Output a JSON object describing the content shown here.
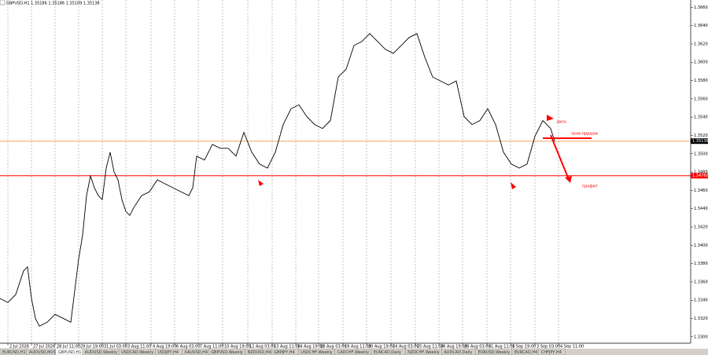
{
  "chart_data": {
    "type": "line",
    "title": "GBPUSD,H1 1.35186 1.35186 1.35109 1.35138",
    "x": [
      0,
      10,
      20,
      30,
      35,
      40,
      45,
      50,
      60,
      70,
      80,
      90,
      95,
      100,
      105,
      110,
      115,
      120,
      125,
      130,
      135,
      140,
      145,
      150,
      155,
      160,
      165,
      170,
      180,
      190,
      200,
      210,
      220,
      230,
      240,
      245,
      250,
      260,
      270,
      280,
      290,
      300,
      310,
      320,
      330,
      340,
      350,
      360,
      370,
      380,
      390,
      400,
      410,
      420,
      430,
      440,
      450,
      460,
      470,
      480,
      490,
      500,
      510,
      520,
      530,
      540,
      550,
      560,
      570,
      580,
      590,
      600,
      610,
      620,
      630,
      640,
      650,
      660,
      670,
      680,
      690,
      700,
      705
    ],
    "series": [
      {
        "name": "GBPUSD,H1",
        "color": "#000000",
        "values": [
          1.33419,
          1.33375,
          1.33462,
          1.33721,
          1.33764,
          1.33419,
          1.33203,
          1.33116,
          1.33159,
          1.33246,
          1.33203,
          1.33159,
          1.33505,
          1.33851,
          1.3411,
          1.34542,
          1.34758,
          1.34628,
          1.34542,
          1.34499,
          1.34844,
          1.35017,
          1.34801,
          1.34715,
          1.34499,
          1.34369,
          1.34326,
          1.34412,
          1.34542,
          1.34585,
          1.34715,
          1.34671,
          1.34628,
          1.34585,
          1.34542,
          1.34628,
          1.34974,
          1.34931,
          1.35103,
          1.3506,
          1.3506,
          1.34974,
          1.35233,
          1.35017,
          1.34887,
          1.34844,
          1.35017,
          1.35319,
          1.35492,
          1.35535,
          1.35406,
          1.35319,
          1.35276,
          1.35363,
          1.35838,
          1.35924,
          1.36183,
          1.36227,
          1.36313,
          1.36227,
          1.3614,
          1.36097,
          1.36183,
          1.3627,
          1.36313,
          1.36054,
          1.35838,
          1.35795,
          1.35751,
          1.35795,
          1.35406,
          1.35319,
          1.35363,
          1.35492,
          1.35319,
          1.35017,
          1.34887,
          1.34844,
          1.34887,
          1.3519,
          1.35363,
          1.35276,
          1.35138
        ]
      }
    ],
    "xlim": [
      0,
      878
    ],
    "xticks": [
      {
        "value": 10,
        "label": "2 Jul 2026"
      },
      {
        "value": 40,
        "label": "27 Jul 2026"
      },
      {
        "value": 70,
        "label": "28 Jul 11:00"
      },
      {
        "value": 100,
        "label": "29 Jul 19:00"
      },
      {
        "value": 130,
        "label": "31 Jul 03:00"
      },
      {
        "value": 160,
        "label": "3 Aug 11:00"
      },
      {
        "value": 192,
        "label": "4 Aug 19:00"
      },
      {
        "value": 222,
        "label": "6 Aug 03:00"
      },
      {
        "value": 252,
        "label": "7 Aug 11:00"
      },
      {
        "value": 283,
        "label": "10 Aug 19:00"
      },
      {
        "value": 315,
        "label": "12 Aug 03:00"
      },
      {
        "value": 346,
        "label": "13 Aug 11:00"
      },
      {
        "value": 376,
        "label": "14 Aug 19:00"
      },
      {
        "value": 405,
        "label": "18 Aug 03:00"
      },
      {
        "value": 436,
        "label": "19 Aug 11:00"
      },
      {
        "value": 466,
        "label": "20 Aug 19:00"
      },
      {
        "value": 497,
        "label": "24 Aug 03:00"
      },
      {
        "value": 528,
        "label": "25 Aug 11:00"
      },
      {
        "value": 558,
        "label": "26 Aug 19:00"
      },
      {
        "value": 588,
        "label": "28 Aug 03:00"
      },
      {
        "value": 619,
        "label": "31 Aug 11:00"
      },
      {
        "value": 649,
        "label": "1 Sep 19:00"
      },
      {
        "value": 680,
        "label": "3 Sep 03:00"
      },
      {
        "value": 710,
        "label": "4 Sep 11:00"
      }
    ],
    "ylim": [
      1.3293,
      1.3668
    ],
    "yticks": [
      {
        "value": 1.33,
        "label": "1.33000"
      },
      {
        "value": 1.332,
        "label": "1.33200"
      },
      {
        "value": 1.334,
        "label": "1.33400"
      },
      {
        "value": 1.336,
        "label": "1.33600"
      },
      {
        "value": 1.338,
        "label": "1.33800"
      },
      {
        "value": 1.34,
        "label": "1.34000"
      },
      {
        "value": 1.342,
        "label": "1.34200"
      },
      {
        "value": 1.344,
        "label": "1.34400"
      },
      {
        "value": 1.346,
        "label": "1.34600"
      },
      {
        "value": 1.348,
        "label": "1.34800"
      },
      {
        "value": 1.35,
        "label": "1.35000"
      },
      {
        "value": 1.352,
        "label": "1.35200"
      },
      {
        "value": 1.354,
        "label": "1.35400"
      },
      {
        "value": 1.356,
        "label": "1.35600"
      },
      {
        "value": 1.358,
        "label": "1.35800"
      },
      {
        "value": 1.36,
        "label": "1.36000"
      },
      {
        "value": 1.362,
        "label": "1.36200"
      },
      {
        "value": 1.364,
        "label": "1.36400"
      },
      {
        "value": 1.366,
        "label": "1.36600"
      }
    ],
    "grid": true,
    "hlines": [
      {
        "value": 1.35138,
        "label": "1.35138",
        "color": "#f4a460",
        "label_color": "#000000"
      },
      {
        "value": 1.3476,
        "label": "1.34760",
        "color": "#ff0000",
        "label_color": "#ff0000"
      }
    ],
    "annotations": [
      {
        "text": "риск",
        "color": "#ff0000"
      },
      {
        "text": "зона пррдаж",
        "color": "#ff0000"
      },
      {
        "text": "профит",
        "color": "#ff0000"
      }
    ],
    "tabs": [
      "EURUSD,H1",
      "AUDUSD,M15",
      "GBPUSD,H1",
      "AUDUSD,Weekly",
      "USDCAD,Weekly",
      "USDJPY,H4",
      "XAUUSD,H4",
      "GBPUSD,Weekly",
      "NZDUSD,H4",
      "GBPJPY,H4",
      "USDCHF,Weekly",
      "CADCHF,Weekly",
      "EURCAD,Daily",
      "NZDCHF,Weekly",
      "AUDCAD,Daily",
      "EURUSD,Weekly",
      "EURCAD,H4",
      "CHFJPY,H4"
    ],
    "active_tab": 2
  }
}
